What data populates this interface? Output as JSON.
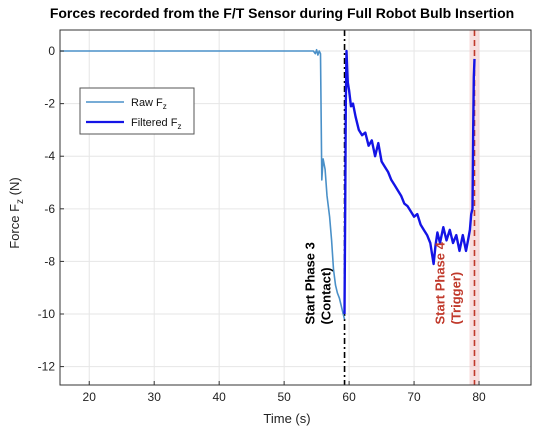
{
  "chart_data": {
    "type": "line",
    "title": "Forces recorded from the F/T Sensor during Full Robot Bulb Insertion",
    "xlabel": "Time (s)",
    "ylabel": {
      "main": "Force F",
      "sub": "z",
      "unit": " (N)"
    },
    "xlim": [
      15.5,
      88
    ],
    "ylim": [
      -12.7,
      0.8
    ],
    "xticks": [
      20,
      30,
      40,
      50,
      60,
      70,
      80
    ],
    "yticks": [
      0,
      -2,
      -4,
      -6,
      -8,
      -10,
      -12
    ],
    "grid": true,
    "legend_position": "upper-left",
    "series": [
      {
        "name": {
          "main": "Raw F",
          "sub": "z"
        },
        "color": "#4a90c8",
        "x": [
          15.5,
          54.5,
          54.8,
          55.0,
          55.2,
          55.4,
          55.6,
          55.8,
          56.0,
          56.3,
          56.6,
          57.0,
          57.3,
          57.6,
          57.9,
          58.2,
          58.5,
          58.8,
          59.1,
          59.3
        ],
        "y": [
          0,
          0,
          -0.1,
          0.05,
          -0.15,
          0.0,
          -0.1,
          -4.9,
          -4.1,
          -4.5,
          -5.5,
          -6.3,
          -7.2,
          -8.3,
          -8.9,
          -9.2,
          -9.4,
          -9.7,
          -10.0,
          -10.2
        ]
      },
      {
        "name": {
          "main": "Filtered F",
          "sub": "z"
        },
        "color": "#1414e6",
        "x": [
          59.3,
          59.4,
          59.5,
          59.6,
          59.7,
          59.8,
          60.0,
          60.3,
          60.6,
          61.0,
          61.5,
          62.0,
          62.5,
          63.0,
          63.5,
          64.0,
          64.5,
          65.0,
          65.5,
          66.0,
          66.5,
          67.0,
          67.5,
          68.0,
          68.5,
          69.0,
          69.5,
          70.0,
          70.5,
          71.0,
          71.5,
          72.0,
          72.5,
          73.0,
          73.3,
          73.6,
          74.0,
          74.5,
          75.0,
          75.5,
          76.0,
          76.5,
          77.0,
          77.5,
          78.0,
          78.3,
          78.6,
          78.8,
          79.0,
          79.1,
          79.2,
          79.3
        ],
        "y": [
          -10.0,
          -6.0,
          -2.0,
          0.0,
          -0.6,
          -1.2,
          -1.5,
          -2.1,
          -2.0,
          -2.5,
          -3.0,
          -3.2,
          -3.1,
          -3.6,
          -3.4,
          -4.0,
          -3.5,
          -4.2,
          -4.4,
          -4.6,
          -4.9,
          -5.1,
          -5.3,
          -5.5,
          -5.8,
          -5.9,
          -6.1,
          -6.3,
          -6.2,
          -6.6,
          -6.8,
          -7.0,
          -7.3,
          -8.1,
          -7.4,
          -6.9,
          -7.3,
          -6.7,
          -7.2,
          -6.8,
          -7.3,
          -7.0,
          -7.6,
          -7.0,
          -7.6,
          -7.2,
          -6.8,
          -6.2,
          -6.0,
          -3.0,
          -1.0,
          -0.3
        ]
      }
    ],
    "annotations": [
      {
        "x": 59.3,
        "color": "#000000",
        "line_style": "dashdot",
        "text_line1": "Start Phase 3",
        "text_line2": "(Contact)"
      },
      {
        "x": 79.3,
        "color": "#c0392b",
        "line_style": "dashed",
        "text_line1": "Start Phase 4",
        "text_line2": "(Trigger)"
      }
    ]
  }
}
